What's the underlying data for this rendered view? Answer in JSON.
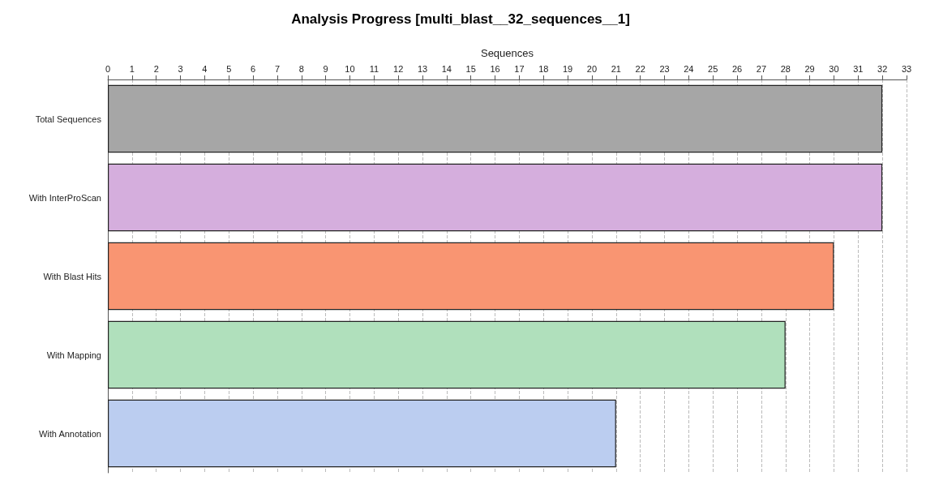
{
  "chart_data": {
    "type": "bar",
    "orientation": "horizontal",
    "title": "Analysis Progress [multi_blast__32_sequences__1]",
    "xlabel": "Sequences",
    "categories": [
      "Total Sequences",
      "With InterProScan",
      "With Blast Hits",
      "With Mapping",
      "With Annotation"
    ],
    "values": [
      32,
      32,
      30,
      28,
      21
    ],
    "colors": [
      "#a6a6a6",
      "#d5aedd",
      "#f99572",
      "#b0e0bc",
      "#bbcdf0"
    ],
    "xlim": [
      0,
      33
    ],
    "xticks": [
      0,
      1,
      2,
      3,
      4,
      5,
      6,
      7,
      8,
      9,
      10,
      11,
      12,
      13,
      14,
      15,
      16,
      17,
      18,
      19,
      20,
      21,
      22,
      23,
      24,
      25,
      26,
      27,
      28,
      29,
      30,
      31,
      32,
      33
    ],
    "grid": "x"
  }
}
